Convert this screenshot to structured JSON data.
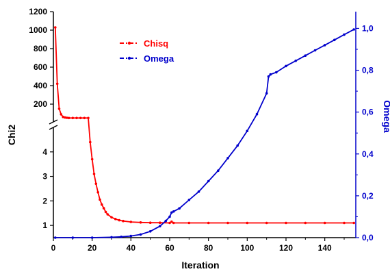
{
  "chart_data": {
    "type": "line",
    "xlabel": "Iteration",
    "ylabel_left": "Chi2",
    "ylabel_right": "Omega",
    "x_range": [
      0,
      156
    ],
    "x_ticks": [
      "0",
      "20",
      "40",
      "60",
      "80",
      "100",
      "120",
      "140"
    ],
    "left_axis": {
      "broken": true,
      "lower_range": [
        0.5,
        5
      ],
      "lower_ticks": [
        "1",
        "2",
        "3",
        "4"
      ],
      "upper_range": [
        30,
        1200
      ],
      "upper_ticks": [
        "200",
        "400",
        "600",
        "800",
        "1000",
        "1200"
      ]
    },
    "right_axis": {
      "range": [
        0,
        1.08
      ],
      "ticks": [
        "0,0",
        "0,2",
        "0,4",
        "0,6",
        "0,8",
        "1,0"
      ]
    },
    "legend": {
      "placement": "top-center",
      "entries": [
        "Chisq",
        "Omega"
      ]
    },
    "colors": {
      "Chisq": "#ff0000",
      "Omega": "#0000cc"
    },
    "series": [
      {
        "name": "Chisq",
        "axis": "left",
        "x": [
          1,
          2,
          3,
          4,
          5,
          6,
          7,
          8,
          10,
          12,
          14,
          16,
          18,
          19,
          20,
          21,
          22,
          23,
          24,
          25,
          26,
          27,
          28,
          30,
          32,
          34,
          36,
          40,
          45,
          50,
          55,
          60,
          61,
          62,
          70,
          80,
          90,
          100,
          110,
          120,
          130,
          140,
          150,
          155
        ],
        "y": [
          1030,
          420,
          150,
          90,
          62,
          55,
          52,
          50,
          50,
          50,
          50,
          50,
          50,
          4.4,
          3.7,
          3.1,
          2.7,
          2.35,
          2.05,
          1.85,
          1.7,
          1.55,
          1.45,
          1.33,
          1.26,
          1.21,
          1.18,
          1.14,
          1.12,
          1.11,
          1.11,
          1.1,
          1.15,
          1.1,
          1.1,
          1.1,
          1.1,
          1.1,
          1.1,
          1.1,
          1.1,
          1.1,
          1.1,
          1.1
        ]
      },
      {
        "name": "Omega",
        "axis": "right",
        "x": [
          1,
          10,
          20,
          30,
          35,
          40,
          45,
          50,
          55,
          58,
          60,
          61,
          62,
          65,
          70,
          75,
          80,
          85,
          90,
          95,
          100,
          105,
          110,
          111,
          112,
          115,
          120,
          125,
          130,
          135,
          140,
          145,
          150,
          155
        ],
        "y": [
          0.0,
          0.0,
          0.0,
          0.002,
          0.004,
          0.008,
          0.015,
          0.03,
          0.055,
          0.08,
          0.1,
          0.12,
          0.125,
          0.14,
          0.18,
          0.22,
          0.27,
          0.32,
          0.38,
          0.44,
          0.51,
          0.59,
          0.69,
          0.77,
          0.78,
          0.79,
          0.82,
          0.845,
          0.87,
          0.895,
          0.92,
          0.945,
          0.97,
          0.995
        ]
      }
    ]
  }
}
